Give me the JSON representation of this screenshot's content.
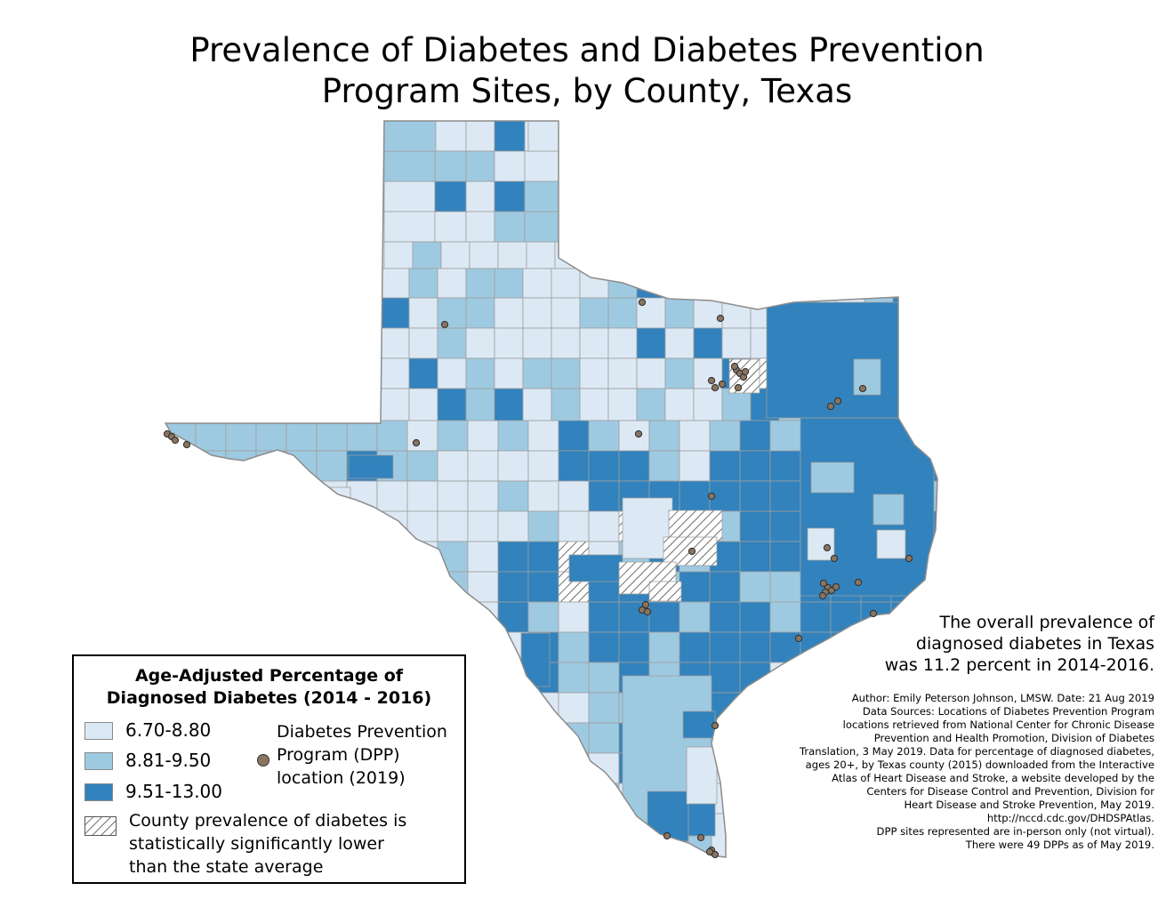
{
  "title": {
    "line1": "Prevalence of Diabetes and Diabetes Prevention",
    "line2": "Program Sites, by County, Texas"
  },
  "colors": {
    "low": "#dce9f5",
    "mid": "#9ecae1",
    "high": "#3182bd",
    "county_border": "#9e9e9e",
    "dpp_point": "#8a7560"
  },
  "legend": {
    "title_line1": "Age-Adjusted Percentage of",
    "title_line2": "Diagnosed Diabetes (2014 - 2016)",
    "classes": [
      {
        "label": "6.70-8.80",
        "color": "#dce9f5"
      },
      {
        "label": "8.81-9.50",
        "color": "#9ecae1"
      },
      {
        "label": "9.51-13.00",
        "color": "#3182bd"
      }
    ],
    "dpp_line1": "Diabetes Prevention",
    "dpp_line2": "Program (DPP)",
    "dpp_line3": "location (2019)",
    "hatch_line1": "County prevalence of diabetes is",
    "hatch_line2": "statistically significantly lower",
    "hatch_line3": "than the state average"
  },
  "overall_note": {
    "line1": "The overall prevalence of",
    "line2": "diagnosed diabetes in Texas",
    "line3": "was 11.2 percent in 2014-2016."
  },
  "credits": [
    "Author: Emily Peterson Johnson, LMSW. Date: 21 Aug 2019",
    "Data Sources: Locations of Diabetes Prevention Program",
    "locations retrieved from National Center for Chronic Disease",
    "Prevention and Health Promotion, Division of Diabetes",
    "Translation, 3 May 2019. Data for percentage of diagnosed diabetes,",
    "ages 20+, by Texas county (2015) downloaded from the Interactive",
    "Atlas of Heart Disease and Stroke, a website developed by the",
    "Centers for Disease Control and Prevention, Division for",
    "Heart Disease and Stroke Prevention, May 2019.",
    "http://nccd.cdc.gov/DHDSPAtlas.",
    "DPP sites represented are in-person only (not virtual).",
    "There were 49 DPPs as of May 2019."
  ]
}
